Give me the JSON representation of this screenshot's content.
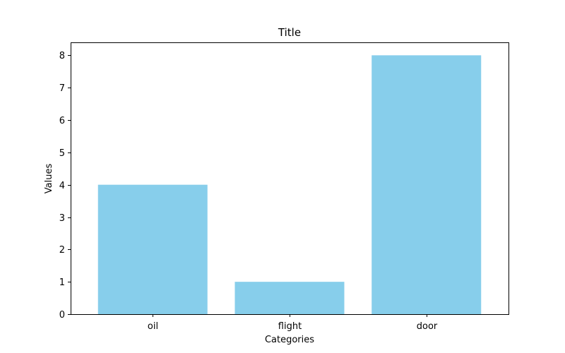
{
  "chart_data": {
    "type": "bar",
    "title": "Title",
    "xlabel": "Categories",
    "ylabel": "Values",
    "categories": [
      "oil",
      "flight",
      "door"
    ],
    "values": [
      4,
      1,
      8
    ],
    "ylim": [
      0,
      8.4
    ],
    "yticks": [
      0,
      1,
      2,
      3,
      4,
      5,
      6,
      7,
      8
    ],
    "bar_color": "#87CEEB",
    "grid": false,
    "legend": "none"
  }
}
